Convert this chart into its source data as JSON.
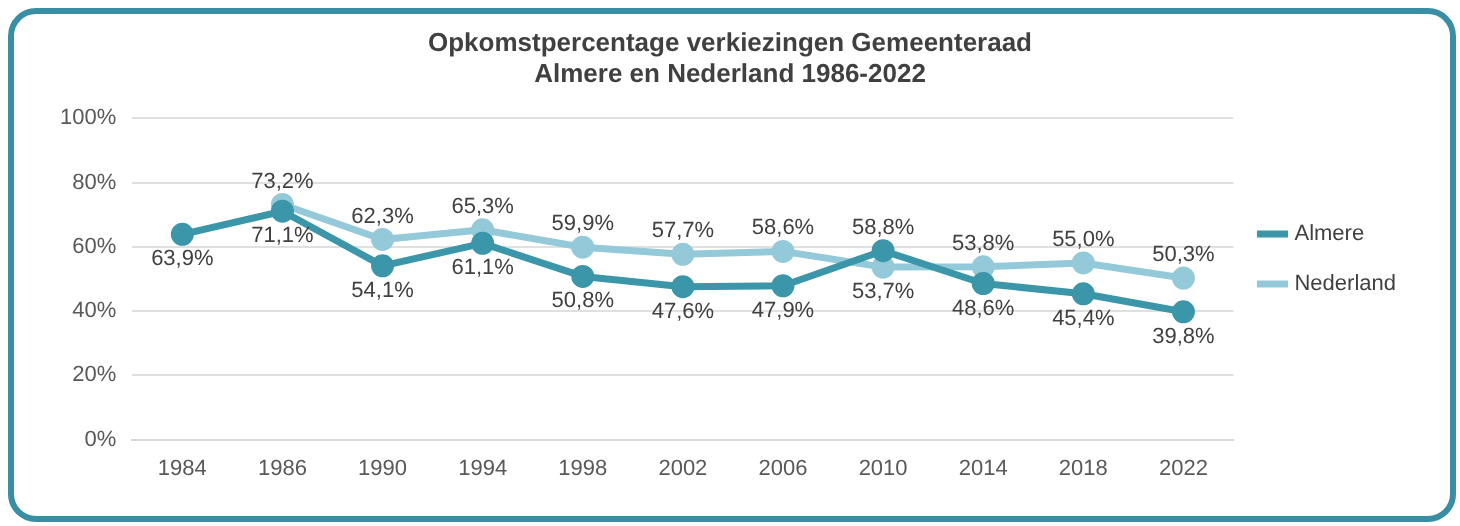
{
  "chart_data": {
    "type": "line",
    "title": "Opkomstpercentage verkiezingen Gemeenteraad",
    "subtitle": "Almere en Nederland 1986-2022",
    "categories": [
      "1984",
      "1986",
      "1990",
      "1994",
      "1998",
      "2002",
      "2006",
      "2010",
      "2014",
      "2018",
      "2022"
    ],
    "series": [
      {
        "name": "Almere",
        "color": "#3a96a8",
        "values": [
          63.9,
          71.1,
          54.1,
          61.1,
          50.8,
          47.6,
          47.9,
          58.8,
          48.6,
          45.4,
          39.8
        ],
        "value_labels": [
          "63,9%",
          "71,1%",
          "54,1%",
          "61,1%",
          "50,8%",
          "47,6%",
          "47,9%",
          "58,8%",
          "48,6%",
          "45,4%",
          "39,8%"
        ]
      },
      {
        "name": "Nederland",
        "color": "#93c9d8",
        "values": [
          null,
          73.2,
          62.3,
          65.3,
          59.9,
          57.7,
          58.6,
          53.7,
          53.8,
          55.0,
          50.3
        ],
        "value_labels": [
          null,
          "73,2%",
          "62,3%",
          "65,3%",
          "59,9%",
          "57,7%",
          "58,6%",
          "53,7%",
          "53,8%",
          "55,0%",
          "50,3%"
        ]
      }
    ],
    "ylim": [
      0,
      100
    ],
    "yticks": [
      {
        "value": 0,
        "label": "0%"
      },
      {
        "value": 20,
        "label": "20%"
      },
      {
        "value": 40,
        "label": "40%"
      },
      {
        "value": 60,
        "label": "60%"
      },
      {
        "value": 80,
        "label": "80%"
      },
      {
        "value": 100,
        "label": "100%"
      }
    ],
    "grid": "y",
    "legend": "right",
    "marker": "circle",
    "line_style": "solid"
  }
}
